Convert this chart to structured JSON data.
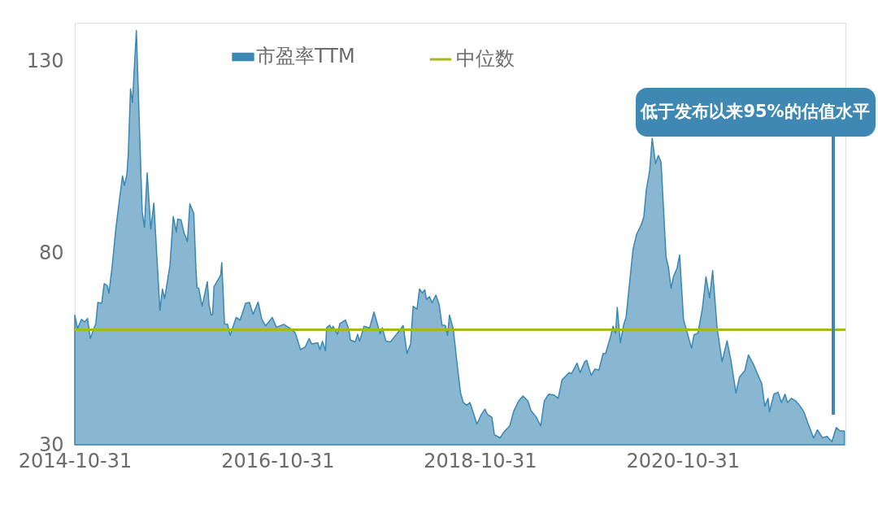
{
  "chart_data": {
    "type": "area",
    "xlim": [
      "2014-10-31",
      "2022-06-10"
    ],
    "xticks": [
      "2014-10-31",
      "2016-10-31",
      "2018-10-31",
      "2020-10-31"
    ],
    "ylim": [
      30,
      140
    ],
    "yticks": [
      30,
      80,
      130
    ],
    "grid": false,
    "legend": "top",
    "annotations": [
      "低于发布以来95%的估值水平"
    ],
    "series": [
      {
        "name": "市盈率TTM",
        "color": "#3a87b2",
        "x": [
          "2014-10-31",
          "2014-11-10",
          "2014-11-24",
          "2014-12-05",
          "2014-12-16",
          "2014-12-26",
          "2015-01-15",
          "2015-01-22",
          "2015-02-05",
          "2015-02-14",
          "2015-02-25",
          "2015-03-03",
          "2015-03-14",
          "2015-03-28",
          "2015-04-10",
          "2015-04-21",
          "2015-04-28",
          "2015-05-07",
          "2015-05-12",
          "2015-05-20",
          "2015-05-27",
          "2015-06-10",
          "2015-06-19",
          "2015-07-01",
          "2015-07-09",
          "2015-07-19",
          "2015-08-01",
          "2015-08-12",
          "2015-09-03",
          "2015-09-12",
          "2015-09-20",
          "2015-10-09",
          "2015-10-21",
          "2015-11-01",
          "2015-11-06",
          "2015-11-18",
          "2015-11-28",
          "2015-12-11",
          "2015-12-20",
          "2016-01-03",
          "2016-01-11",
          "2016-01-15",
          "2016-01-21",
          "2016-02-02",
          "2016-02-21",
          "2016-02-27",
          "2016-03-06",
          "2016-03-11",
          "2016-03-16",
          "2016-04-09",
          "2016-04-13",
          "2016-04-23",
          "2016-05-04",
          "2016-05-13",
          "2016-06-04",
          "2016-06-18",
          "2016-07-08",
          "2016-07-22",
          "2016-08-04",
          "2016-08-22",
          "2016-09-04",
          "2016-09-18",
          "2016-10-12",
          "2016-10-27",
          "2016-11-22",
          "2016-12-17",
          "2017-01-03",
          "2017-01-22",
          "2017-02-08",
          "2017-02-22",
          "2017-03-03",
          "2017-03-25",
          "2017-04-02",
          "2017-04-11",
          "2017-04-22",
          "2017-04-26",
          "2017-05-07",
          "2017-05-14",
          "2017-05-19",
          "2017-06-04",
          "2017-06-13",
          "2017-07-03",
          "2017-07-15",
          "2017-07-21",
          "2017-08-07",
          "2017-08-16",
          "2017-08-23",
          "2017-09-08",
          "2017-09-28",
          "2017-10-14",
          "2017-11-05",
          "2017-11-13",
          "2017-11-26",
          "2017-12-12",
          "2017-12-25",
          "2018-01-15",
          "2018-01-27",
          "2018-02-10",
          "2018-02-23",
          "2018-03-04",
          "2018-03-18",
          "2018-03-27",
          "2018-04-06",
          "2018-04-15",
          "2018-04-21",
          "2018-05-02",
          "2018-05-11",
          "2018-05-25",
          "2018-06-06",
          "2018-06-16",
          "2018-06-28",
          "2018-07-06",
          "2018-07-13",
          "2018-07-27",
          "2018-08-08",
          "2018-08-22",
          "2018-09-01",
          "2018-09-13",
          "2018-09-25",
          "2018-10-20",
          "2018-11-05",
          "2018-11-18",
          "2018-11-27",
          "2018-12-13",
          "2018-12-22",
          "2019-01-12",
          "2019-01-25",
          "2019-02-16",
          "2019-03-01",
          "2019-03-19",
          "2019-04-04",
          "2019-04-22",
          "2019-05-03",
          "2019-05-22",
          "2019-06-07",
          "2019-06-20",
          "2019-07-06",
          "2019-07-24",
          "2019-08-09",
          "2019-08-23",
          "2019-09-17",
          "2019-09-26",
          "2019-10-16",
          "2019-10-27",
          "2019-11-13",
          "2019-11-20",
          "2019-12-06",
          "2019-12-19",
          "2020-01-03",
          "2020-01-18",
          "2020-01-27",
          "2020-02-12",
          "2020-02-23",
          "2020-03-03",
          "2020-03-09",
          "2020-03-20",
          "2020-04-01",
          "2020-04-10",
          "2020-04-19",
          "2020-05-05",
          "2020-05-18",
          "2020-06-04",
          "2020-06-13",
          "2020-06-22",
          "2020-07-04",
          "2020-07-13",
          "2020-07-25",
          "2020-08-04",
          "2020-08-14",
          "2020-09-01",
          "2020-09-10",
          "2020-09-19",
          "2020-09-28",
          "2020-10-11",
          "2020-10-20",
          "2020-11-03",
          "2020-12-02",
          "2020-12-11",
          "2020-12-25",
          "2021-01-10",
          "2021-01-23",
          "2021-02-05",
          "2021-02-16",
          "2021-03-04",
          "2021-03-22",
          "2021-04-09",
          "2021-04-23",
          "2021-05-11",
          "2021-05-24",
          "2021-06-12",
          "2021-06-25",
          "2021-07-13",
          "2021-08-03",
          "2021-08-12",
          "2021-08-23",
          "2021-09-04",
          "2021-09-09",
          "2021-09-25",
          "2021-10-10",
          "2021-10-22",
          "2021-11-04",
          "2021-11-13",
          "2021-11-27",
          "2021-12-13",
          "2021-12-26",
          "2022-01-11",
          "2022-01-25",
          "2022-02-15",
          "2022-03-01",
          "2022-03-19",
          "2022-04-04",
          "2022-04-22",
          "2022-05-08",
          "2022-05-21",
          "2022-06-06"
        ],
        "values": [
          63.8,
          60.3,
          62.7,
          62,
          62.9,
          57.7,
          61.7,
          67.1,
          66.9,
          72,
          71.5,
          69.5,
          76,
          86.3,
          93.9,
          100.1,
          97.6,
          100.5,
          106,
          122.8,
          119.2,
          138,
          117.7,
          90.7,
          86.7,
          100.9,
          86.2,
          93,
          65,
          70.6,
          68.1,
          76.7,
          89.5,
          85.5,
          88.8,
          88.6,
          85.5,
          83,
          92.8,
          90.3,
          75.6,
          70.9,
          70.8,
          66.1,
          72.5,
          66.5,
          63.8,
          64,
          71.2,
          74.2,
          77.5,
          61.5,
          61.4,
          58.5,
          63.2,
          62.5,
          66.9,
          67.1,
          64,
          67.2,
          62.8,
          61,
          63.2,
          60.6,
          61.4,
          60.3,
          59.2,
          54.8,
          55.5,
          57.7,
          56.3,
          56.6,
          54.8,
          57,
          54.5,
          60.5,
          61.2,
          60.1,
          60.9,
          58.8,
          61.6,
          62.5,
          60.1,
          57.3,
          56.8,
          58.8,
          57,
          60.9,
          60.4,
          64.6,
          58.9,
          60.5,
          57,
          56.8,
          58,
          59.9,
          61.1,
          53.8,
          56.3,
          66.1,
          65.3,
          70.6,
          69.6,
          70.4,
          67.9,
          68.6,
          67,
          69,
          66.5,
          61.2,
          61.1,
          58.5,
          63.8,
          60.1,
          52,
          43.5,
          41,
          40.3,
          41,
          35.4,
          37.9,
          39.3,
          37.9,
          37.2,
          32.6,
          31.8,
          33.3,
          35,
          38.6,
          41.4,
          42.7,
          41.4,
          38.9,
          37.2,
          34.9,
          41.4,
          43.2,
          43,
          42.1,
          46.9,
          48.8,
          48.5,
          51.3,
          48.8,
          51.7,
          52,
          48.1,
          49.7,
          49.5,
          53.8,
          53.8,
          57.7,
          60.9,
          59.1,
          65.8,
          56.6,
          61.2,
          63.3,
          69.7,
          81,
          84.9,
          87.4,
          89.5,
          96.6,
          101.5,
          109.9,
          103.3,
          105.4,
          103.7,
          78.9,
          76.1,
          70.8,
          73.9,
          76.1,
          79.5,
          62.6,
          55.2,
          58.7,
          59.1,
          65.5,
          73.8,
          68.3,
          75.4,
          60.5,
          51.7,
          57.1,
          52,
          43.5,
          47.7,
          49.3,
          53.4,
          51,
          47.4,
          46,
          40.1,
          42.1,
          38.6,
          43.2,
          43.7,
          41,
          43.2,
          41,
          42.1,
          41.4,
          40.3,
          38.6,
          35.7,
          31.8,
          33.9,
          31.8,
          32.2,
          30.8,
          34.5,
          33.6,
          33.6
        ]
      },
      {
        "name": "中位数",
        "type": "line",
        "color": "#a6b91a",
        "x": [
          "2014-10-31",
          "2022-06-10"
        ],
        "values": [
          60,
          60
        ]
      }
    ]
  }
}
